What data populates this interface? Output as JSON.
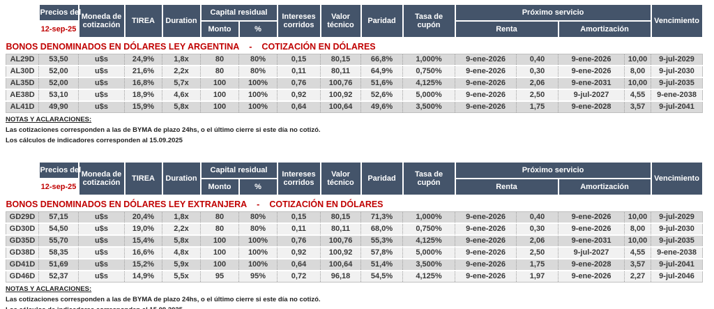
{
  "report": {
    "header": {
      "precios_label": "Precios del",
      "precios_date": "12-sep-25",
      "moneda": "Moneda de cotización",
      "tirea": "TIREA",
      "duration": "Duration",
      "capital_residual": "Capital residual",
      "monto": "Monto",
      "pct": "%",
      "intereses": "Intereses corridos",
      "valor_tecnico": "Valor técnico",
      "paridad": "Paridad",
      "tasa_cupon": "Tasa de cupón",
      "proximo_servicio": "Próximo servicio",
      "renta": "Renta",
      "amortizacion": "Amortización",
      "vencimiento": "Vencimiento"
    },
    "tables": [
      {
        "title_main": "BONOS DENOMINADOS EN DÓLARES LEY ARGENTINA",
        "title_sep": "-",
        "title_sub": "COTIZACIÓN EN DÓLARES",
        "rows": [
          [
            "AL29D",
            "53,50",
            "u$s",
            "24,9%",
            "1,8x",
            "80",
            "80%",
            "0,15",
            "80,15",
            "66,8%",
            "1,000%",
            "9-ene-2026",
            "0,40",
            "9-ene-2026",
            "10,00",
            "9-jul-2029"
          ],
          [
            "AL30D",
            "52,00",
            "u$s",
            "21,6%",
            "2,2x",
            "80",
            "80%",
            "0,11",
            "80,11",
            "64,9%",
            "0,750%",
            "9-ene-2026",
            "0,30",
            "9-ene-2026",
            "8,00",
            "9-jul-2030"
          ],
          [
            "AL35D",
            "52,00",
            "u$s",
            "16,8%",
            "5,7x",
            "100",
            "100%",
            "0,76",
            "100,76",
            "51,6%",
            "4,125%",
            "9-ene-2026",
            "2,06",
            "9-ene-2031",
            "10,00",
            "9-jul-2035"
          ],
          [
            "AE38D",
            "53,10",
            "u$s",
            "18,9%",
            "4,6x",
            "100",
            "100%",
            "0,92",
            "100,92",
            "52,6%",
            "5,000%",
            "9-ene-2026",
            "2,50",
            "9-jul-2027",
            "4,55",
            "9-ene-2038"
          ],
          [
            "AL41D",
            "49,90",
            "u$s",
            "15,9%",
            "5,8x",
            "100",
            "100%",
            "0,64",
            "100,64",
            "49,6%",
            "3,500%",
            "9-ene-2026",
            "1,75",
            "9-ene-2028",
            "3,57",
            "9-jul-2041"
          ]
        ]
      },
      {
        "title_main": "BONOS DENOMINADOS EN DÓLARES LEY EXTRANJERA",
        "title_sep": "-",
        "title_sub": "COTIZACIÓN EN DÓLARES",
        "rows": [
          [
            "GD29D",
            "57,15",
            "u$s",
            "20,4%",
            "1,8x",
            "80",
            "80%",
            "0,15",
            "80,15",
            "71,3%",
            "1,000%",
            "9-ene-2026",
            "0,40",
            "9-ene-2026",
            "10,00",
            "9-jul-2029"
          ],
          [
            "GD30D",
            "54,50",
            "u$s",
            "19,0%",
            "2,2x",
            "80",
            "80%",
            "0,11",
            "80,11",
            "68,0%",
            "0,750%",
            "9-ene-2026",
            "0,30",
            "9-ene-2026",
            "8,00",
            "9-jul-2030"
          ],
          [
            "GD35D",
            "55,70",
            "u$s",
            "15,4%",
            "5,8x",
            "100",
            "100%",
            "0,76",
            "100,76",
            "55,3%",
            "4,125%",
            "9-ene-2026",
            "2,06",
            "9-ene-2031",
            "10,00",
            "9-jul-2035"
          ],
          [
            "GD38D",
            "58,35",
            "u$s",
            "16,6%",
            "4,8x",
            "100",
            "100%",
            "0,92",
            "100,92",
            "57,8%",
            "5,000%",
            "9-ene-2026",
            "2,50",
            "9-jul-2027",
            "4,55",
            "9-ene-2038"
          ],
          [
            "GD41D",
            "51,69",
            "u$s",
            "15,2%",
            "5,9x",
            "100",
            "100%",
            "0,64",
            "100,64",
            "51,4%",
            "3,500%",
            "9-ene-2026",
            "1,75",
            "9-ene-2028",
            "3,57",
            "9-jul-2041"
          ],
          [
            "GD46D",
            "52,37",
            "u$s",
            "14,9%",
            "5,5x",
            "95",
            "95%",
            "0,72",
            "96,18",
            "54,5%",
            "4,125%",
            "9-ene-2026",
            "1,97",
            "9-ene-2026",
            "2,27",
            "9-jul-2046"
          ]
        ]
      }
    ],
    "notes": {
      "heading": "NOTAS Y ACLARACIONES:",
      "lines": [
        "Las cotizaciones corresponden a las de BYMA de plazo 24hs, o el último cierre si este día no cotizó.",
        "Los cálculos de indicadores corresponden al 15.09.2025"
      ]
    },
    "colors": {
      "header_bg": "#44546A",
      "accent_red": "#C00000",
      "row_odd": "#D9D9D9",
      "row_even": "#F1F1F1"
    }
  }
}
